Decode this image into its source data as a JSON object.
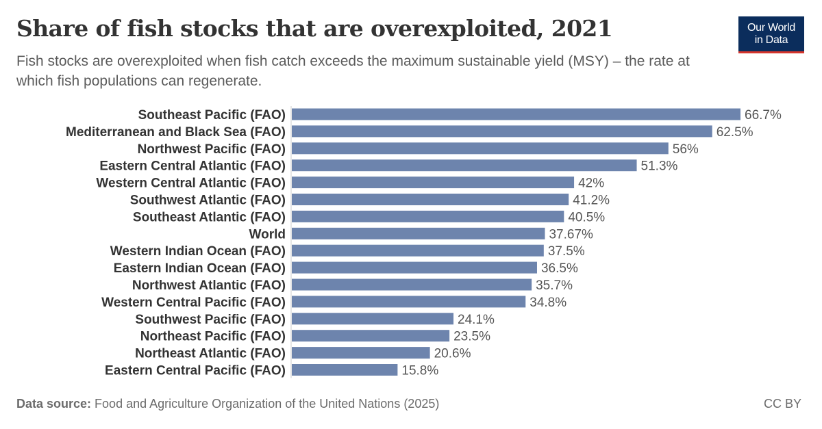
{
  "title": "Share of fish stocks that are overexploited, 2021",
  "subtitle": "Fish stocks are overexploited when fish catch exceeds the maximum sustainable yield (MSY) – the rate at which fish populations can regenerate.",
  "logo": {
    "line1": "Our World",
    "line2": "in Data"
  },
  "footer": {
    "source_label": "Data source:",
    "source_text": " Food and Agriculture Organization of the United Nations (2025)",
    "license": "CC BY"
  },
  "colors": {
    "bar": "#6d84ad",
    "label": "#333333",
    "value": "#555555",
    "axis": "#cccccc"
  },
  "chart_data": {
    "type": "bar",
    "orientation": "horizontal",
    "categories": [
      "Southeast Pacific (FAO)",
      "Mediterranean and Black Sea (FAO)",
      "Northwest Pacific (FAO)",
      "Eastern Central Atlantic (FAO)",
      "Western Central Atlantic (FAO)",
      "Southwest Atlantic (FAO)",
      "Southeast Atlantic (FAO)",
      "World",
      "Western Indian Ocean (FAO)",
      "Eastern Indian Ocean (FAO)",
      "Northwest Atlantic (FAO)",
      "Western Central Pacific (FAO)",
      "Southwest Pacific (FAO)",
      "Northeast Pacific (FAO)",
      "Northeast Atlantic (FAO)",
      "Eastern Central Pacific (FAO)"
    ],
    "values": [
      66.7,
      62.5,
      56,
      51.3,
      42,
      41.2,
      40.5,
      37.67,
      37.5,
      36.5,
      35.7,
      34.8,
      24.1,
      23.5,
      20.6,
      15.8
    ],
    "value_labels": [
      "66.7%",
      "62.5%",
      "56%",
      "51.3%",
      "42%",
      "41.2%",
      "40.5%",
      "37.67%",
      "37.5%",
      "36.5%",
      "35.7%",
      "34.8%",
      "24.1%",
      "23.5%",
      "20.6%",
      "15.8%"
    ],
    "unit": "%",
    "xlim": [
      0,
      66.7
    ]
  }
}
